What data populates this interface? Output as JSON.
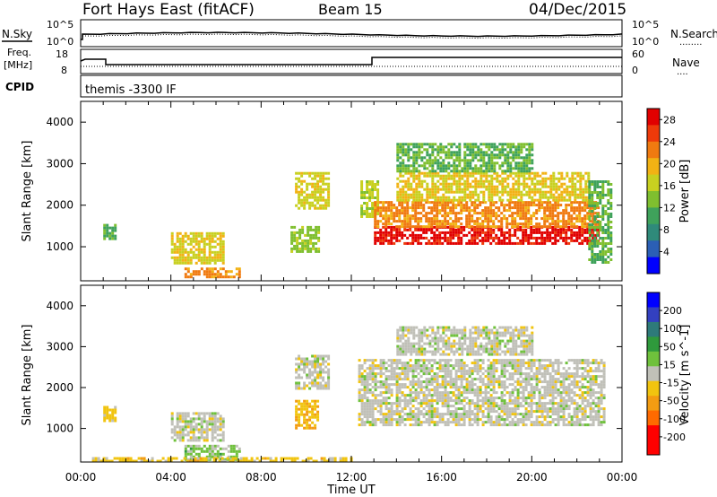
{
  "header": {
    "title": "Fort Hays East (fitACF)",
    "beam": "Beam 15",
    "date": "04/Dec/2015"
  },
  "top_panels": {
    "nsky_label": "N.Sky",
    "nsearch_label": "N.Search",
    "nsky_ticks": [
      "10^5",
      "10^0"
    ],
    "nsearch_ticks": [
      "10^5",
      "10^0"
    ],
    "freq_label_line1": "Freq.",
    "freq_label_line2": "[MHz]",
    "freq_ticks": [
      "18",
      "8"
    ],
    "nave_label": "Nave",
    "nave_ticks": [
      "60",
      "0"
    ],
    "cpid_label": "CPID",
    "cpid_text": "themis -3300 IF",
    "nave_legend": "....",
    "nsearch_legend": "........"
  },
  "colors": {
    "power_scale": [
      "#0000ff",
      "#2b5fb5",
      "#2f8a7a",
      "#3fa25b",
      "#7fbf2f",
      "#c8d020",
      "#f2b214",
      "#f07a10",
      "#ee3a0a",
      "#e10000"
    ],
    "velocity_scale": [
      "#0000ff",
      "#3340c0",
      "#2e7a7a",
      "#2f9a3c",
      "#6fc13c",
      "#c0c0b8",
      "#f1c40f",
      "#f39c12",
      "#ff6a00",
      "#ff0000",
      "#ff0000"
    ]
  },
  "chart_data": [
    {
      "type": "heatmap",
      "name": "power",
      "ylabel": "Slant Range [km]",
      "xlabel": "Time UT",
      "x_ticks": [
        "00:00",
        "04:00",
        "08:00",
        "12:00",
        "16:00",
        "20:00",
        "00:00"
      ],
      "y_ticks": [
        "1000",
        "2000",
        "3000",
        "4000"
      ],
      "xlim_hours": [
        0,
        24
      ],
      "ylim_km": [
        180,
        4500
      ],
      "colorbar_label": "Power [dB]",
      "colorbar_ticks": [
        "4",
        "8",
        "12",
        "16",
        "20",
        "24",
        "28"
      ],
      "colorbar_range": [
        0,
        30
      ],
      "regions": [
        {
          "t0": 1.0,
          "t1": 1.5,
          "r0": 1200,
          "r1": 1550,
          "value": 12
        },
        {
          "t0": 4.0,
          "t1": 6.3,
          "r0": 600,
          "r1": 1350,
          "value": 18
        },
        {
          "t0": 4.6,
          "t1": 7.0,
          "r0": 250,
          "r1": 500,
          "value": 22
        },
        {
          "t0": 9.3,
          "t1": 10.5,
          "r0": 900,
          "r1": 1500,
          "value": 14
        },
        {
          "t0": 9.5,
          "t1": 11.0,
          "r0": 1900,
          "r1": 2800,
          "value": 17
        },
        {
          "t0": 12.4,
          "t1": 13.2,
          "r0": 1700,
          "r1": 2600,
          "value": 16
        },
        {
          "t0": 13.0,
          "t1": 23.0,
          "r0": 1100,
          "r1": 1500,
          "value": 28
        },
        {
          "t0": 13.0,
          "t1": 23.0,
          "r0": 1500,
          "r1": 2100,
          "value": 22
        },
        {
          "t0": 14.0,
          "t1": 22.5,
          "r0": 2100,
          "r1": 2800,
          "value": 18
        },
        {
          "t0": 14.0,
          "t1": 20.0,
          "r0": 2800,
          "r1": 3500,
          "value": 12
        },
        {
          "t0": 22.5,
          "t1": 23.5,
          "r0": 600,
          "r1": 2600,
          "value": 12
        }
      ]
    },
    {
      "type": "heatmap",
      "name": "velocity",
      "ylabel": "Slant Range [km]",
      "xlabel": "Time UT",
      "x_ticks": [
        "00:00",
        "04:00",
        "08:00",
        "12:00",
        "16:00",
        "20:00",
        "00:00"
      ],
      "y_ticks": [
        "1000",
        "2000",
        "3000",
        "4000"
      ],
      "xlim_hours": [
        0,
        24
      ],
      "ylim_km": [
        180,
        4500
      ],
      "colorbar_label": "Velocity [m s^-1]",
      "colorbar_ticks": [
        "200",
        "100",
        "50",
        "15",
        "-15",
        "-50",
        "-100",
        "-200"
      ],
      "colorbar_range": [
        -250,
        250
      ],
      "regions": [
        {
          "t0": 1.0,
          "t1": 1.5,
          "r0": 1200,
          "r1": 1550,
          "value": -40
        },
        {
          "t0": 4.0,
          "t1": 6.3,
          "r0": 700,
          "r1": 1400,
          "value": 0
        },
        {
          "t0": 4.6,
          "t1": 7.0,
          "r0": 250,
          "r1": 600,
          "value": 40
        },
        {
          "t0": 9.5,
          "t1": 10.5,
          "r0": 1000,
          "r1": 1700,
          "value": -60
        },
        {
          "t0": 9.5,
          "t1": 11.0,
          "r0": 2000,
          "r1": 2800,
          "value": 0
        },
        {
          "t0": 12.3,
          "t1": 23.2,
          "r0": 1100,
          "r1": 2700,
          "value": 0
        },
        {
          "t0": 14.0,
          "t1": 20.0,
          "r0": 2800,
          "r1": 3500,
          "value": 0
        },
        {
          "t0": 0.5,
          "t1": 12.0,
          "r0": 180,
          "r1": 300,
          "value": -40
        }
      ]
    }
  ],
  "footer": {
    "xlabel": "Time UT"
  }
}
